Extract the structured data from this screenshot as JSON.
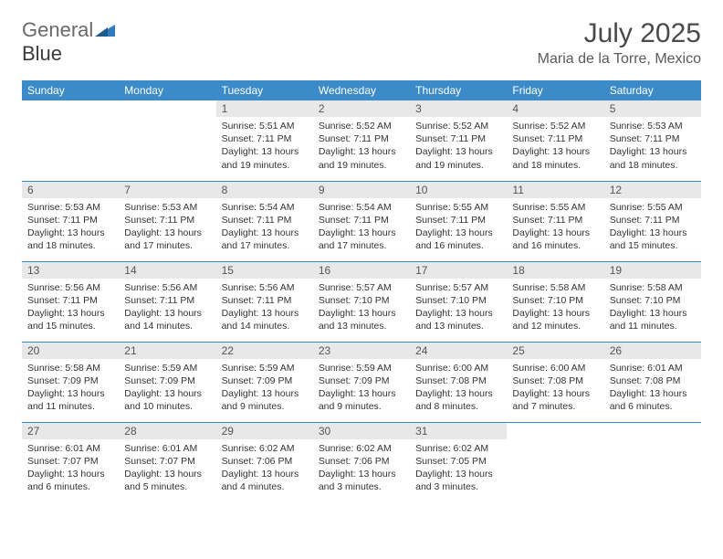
{
  "brand": {
    "part1": "General",
    "part2": "Blue"
  },
  "title": "July 2025",
  "location": "Maria de la Torre, Mexico",
  "colors": {
    "header_bg": "#3b8bc8",
    "header_fg": "#ffffff",
    "daynum_bg": "#e8e8e8",
    "border": "#3b8bc8",
    "logo_gray": "#6a6a6a",
    "logo_blue": "#2f7bbf"
  },
  "weekdays": [
    "Sunday",
    "Monday",
    "Tuesday",
    "Wednesday",
    "Thursday",
    "Friday",
    "Saturday"
  ],
  "weeks": [
    [
      null,
      null,
      {
        "n": "1",
        "sr": "5:51 AM",
        "ss": "7:11 PM",
        "dl": "13 hours and 19 minutes."
      },
      {
        "n": "2",
        "sr": "5:52 AM",
        "ss": "7:11 PM",
        "dl": "13 hours and 19 minutes."
      },
      {
        "n": "3",
        "sr": "5:52 AM",
        "ss": "7:11 PM",
        "dl": "13 hours and 19 minutes."
      },
      {
        "n": "4",
        "sr": "5:52 AM",
        "ss": "7:11 PM",
        "dl": "13 hours and 18 minutes."
      },
      {
        "n": "5",
        "sr": "5:53 AM",
        "ss": "7:11 PM",
        "dl": "13 hours and 18 minutes."
      }
    ],
    [
      {
        "n": "6",
        "sr": "5:53 AM",
        "ss": "7:11 PM",
        "dl": "13 hours and 18 minutes."
      },
      {
        "n": "7",
        "sr": "5:53 AM",
        "ss": "7:11 PM",
        "dl": "13 hours and 17 minutes."
      },
      {
        "n": "8",
        "sr": "5:54 AM",
        "ss": "7:11 PM",
        "dl": "13 hours and 17 minutes."
      },
      {
        "n": "9",
        "sr": "5:54 AM",
        "ss": "7:11 PM",
        "dl": "13 hours and 17 minutes."
      },
      {
        "n": "10",
        "sr": "5:55 AM",
        "ss": "7:11 PM",
        "dl": "13 hours and 16 minutes."
      },
      {
        "n": "11",
        "sr": "5:55 AM",
        "ss": "7:11 PM",
        "dl": "13 hours and 16 minutes."
      },
      {
        "n": "12",
        "sr": "5:55 AM",
        "ss": "7:11 PM",
        "dl": "13 hours and 15 minutes."
      }
    ],
    [
      {
        "n": "13",
        "sr": "5:56 AM",
        "ss": "7:11 PM",
        "dl": "13 hours and 15 minutes."
      },
      {
        "n": "14",
        "sr": "5:56 AM",
        "ss": "7:11 PM",
        "dl": "13 hours and 14 minutes."
      },
      {
        "n": "15",
        "sr": "5:56 AM",
        "ss": "7:11 PM",
        "dl": "13 hours and 14 minutes."
      },
      {
        "n": "16",
        "sr": "5:57 AM",
        "ss": "7:10 PM",
        "dl": "13 hours and 13 minutes."
      },
      {
        "n": "17",
        "sr": "5:57 AM",
        "ss": "7:10 PM",
        "dl": "13 hours and 13 minutes."
      },
      {
        "n": "18",
        "sr": "5:58 AM",
        "ss": "7:10 PM",
        "dl": "13 hours and 12 minutes."
      },
      {
        "n": "19",
        "sr": "5:58 AM",
        "ss": "7:10 PM",
        "dl": "13 hours and 11 minutes."
      }
    ],
    [
      {
        "n": "20",
        "sr": "5:58 AM",
        "ss": "7:09 PM",
        "dl": "13 hours and 11 minutes."
      },
      {
        "n": "21",
        "sr": "5:59 AM",
        "ss": "7:09 PM",
        "dl": "13 hours and 10 minutes."
      },
      {
        "n": "22",
        "sr": "5:59 AM",
        "ss": "7:09 PM",
        "dl": "13 hours and 9 minutes."
      },
      {
        "n": "23",
        "sr": "5:59 AM",
        "ss": "7:09 PM",
        "dl": "13 hours and 9 minutes."
      },
      {
        "n": "24",
        "sr": "6:00 AM",
        "ss": "7:08 PM",
        "dl": "13 hours and 8 minutes."
      },
      {
        "n": "25",
        "sr": "6:00 AM",
        "ss": "7:08 PM",
        "dl": "13 hours and 7 minutes."
      },
      {
        "n": "26",
        "sr": "6:01 AM",
        "ss": "7:08 PM",
        "dl": "13 hours and 6 minutes."
      }
    ],
    [
      {
        "n": "27",
        "sr": "6:01 AM",
        "ss": "7:07 PM",
        "dl": "13 hours and 6 minutes."
      },
      {
        "n": "28",
        "sr": "6:01 AM",
        "ss": "7:07 PM",
        "dl": "13 hours and 5 minutes."
      },
      {
        "n": "29",
        "sr": "6:02 AM",
        "ss": "7:06 PM",
        "dl": "13 hours and 4 minutes."
      },
      {
        "n": "30",
        "sr": "6:02 AM",
        "ss": "7:06 PM",
        "dl": "13 hours and 3 minutes."
      },
      {
        "n": "31",
        "sr": "6:02 AM",
        "ss": "7:05 PM",
        "dl": "13 hours and 3 minutes."
      },
      null,
      null
    ]
  ],
  "labels": {
    "sunrise": "Sunrise:",
    "sunset": "Sunset:",
    "daylight": "Daylight:"
  }
}
